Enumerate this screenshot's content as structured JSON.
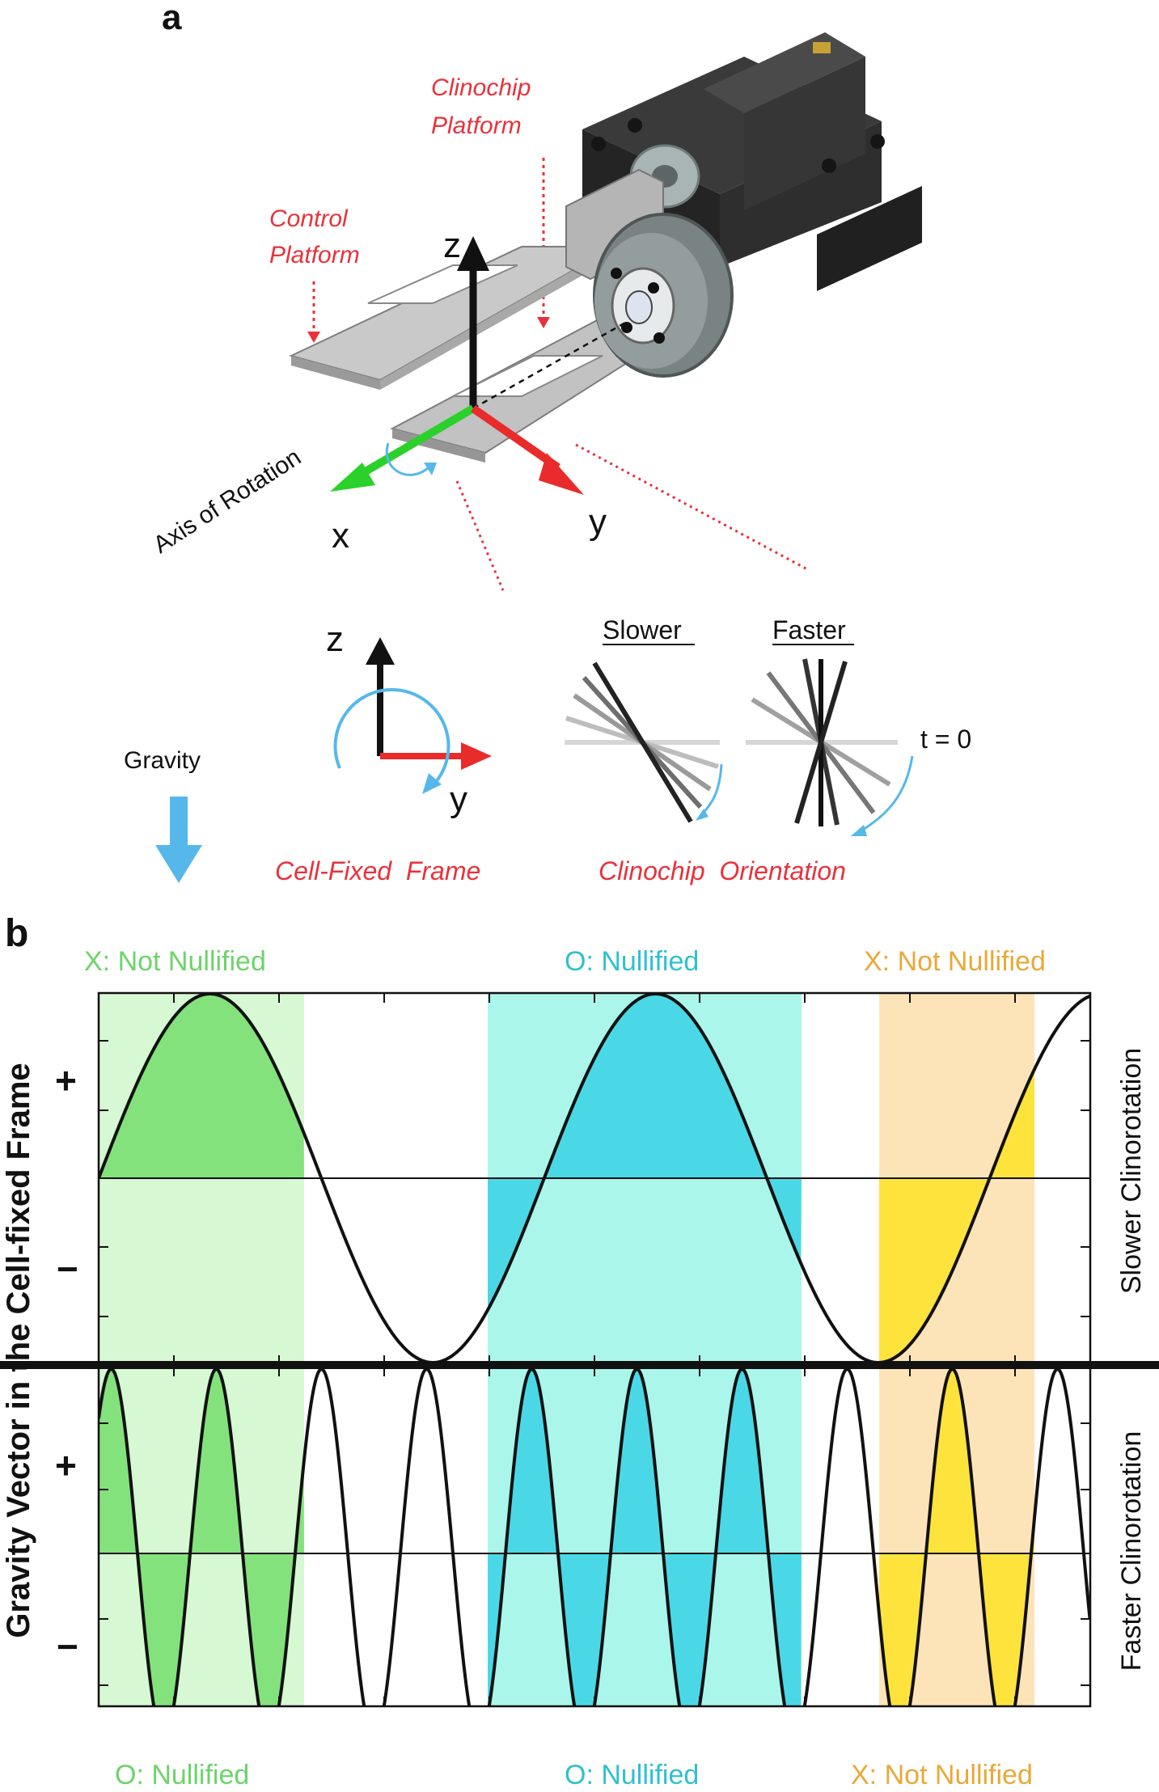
{
  "panel_a": {
    "label": "a",
    "clinochip_platform": [
      "Clinochip",
      "Platform"
    ],
    "control_platform": [
      "Control",
      "Platform"
    ],
    "axis_of_rotation": "Axis of Rotation",
    "axis_x": "x",
    "axis_y": "y",
    "axis_z": "z",
    "gravity": "Gravity",
    "cell_fixed_frame": "Cell-Fixed  Frame",
    "slower": "Slower",
    "faster": "Faster",
    "t0": "t = 0",
    "clinochip_orientation": "Clinochip  Orientation",
    "frame_z": "z",
    "frame_y": "y"
  },
  "panel_b": {
    "label": "b",
    "y_axis_label": "Gravity Vector in the Cell-fixed Frame",
    "plus": "+",
    "minus": "−",
    "slower_row_label": "Slower Clinorotation",
    "faster_row_label": "Faster Clinorotation",
    "top_labels": [
      "X: Not Nullified",
      "O: Nullified",
      "X: Not Nullified"
    ],
    "bottom_labels": [
      "O: Nullified",
      "O: Nullified",
      "X: Not Nullified"
    ],
    "colors": {
      "green": "#84e27c",
      "green_band": "#d6f8d2",
      "cyan": "#4bd8e6",
      "cyan_band": "#aaf6ea",
      "yellow": "#ffe33d",
      "yellow_band": "#fde4b8",
      "label_green": "#6ed36a",
      "label_cyan": "#2fc0cf",
      "label_orange": "#e8a93a",
      "accent_red": "#e8323c",
      "axis_green": "#2bd12b",
      "axis_blue": "#56b8ea"
    }
  }
}
